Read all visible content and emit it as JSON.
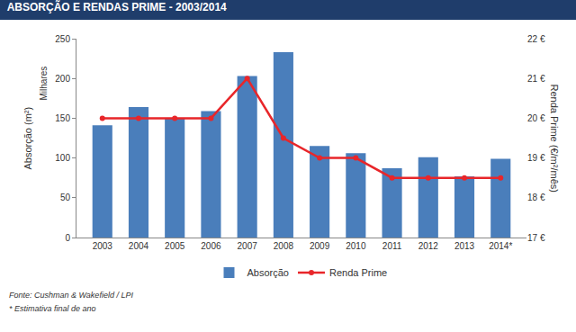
{
  "chart_data": {
    "type": "bar",
    "title": "ABSORÇÃO E RENDAS PRIME - 2003/2014",
    "categories": [
      "2003",
      "2004",
      "2005",
      "2006",
      "2007",
      "2008",
      "2009",
      "2010",
      "2011",
      "2012",
      "2013",
      "2014*"
    ],
    "series": [
      {
        "name": "Absorção",
        "type": "bar",
        "color": "#4a7ebb",
        "values": [
          141,
          164,
          150,
          159,
          203,
          233,
          115,
          106,
          87,
          101,
          77,
          99
        ]
      },
      {
        "name": "Renda Prime",
        "type": "line",
        "axis": "y2",
        "color": "#e8262a",
        "marker": "circle",
        "values": [
          20,
          20,
          20,
          20,
          21,
          19.5,
          19,
          19,
          18.5,
          18.5,
          18.5,
          18.5
        ]
      }
    ],
    "ylabel": "Absorção (m²)",
    "y2label": "Renda Prime (€/m²/mês)",
    "annotations": [
      "Milhares"
    ],
    "ylim": [
      0,
      250
    ],
    "yticks": [
      0,
      50,
      100,
      150,
      200,
      250
    ],
    "y2lim": [
      17,
      22
    ],
    "y2ticks": [
      {
        "value": 17,
        "label": "17 €"
      },
      {
        "value": 18,
        "label": "18 €"
      },
      {
        "value": 19,
        "label": "19 €"
      },
      {
        "value": 20,
        "label": "20 €"
      },
      {
        "value": 21,
        "label": "21 €"
      },
      {
        "value": 22,
        "label": "22 €"
      }
    ],
    "grid": false,
    "legend": "bottom",
    "source": "Fonte: Cushman & Wakefield / LPI",
    "note": "* Estimativa final de ano"
  }
}
